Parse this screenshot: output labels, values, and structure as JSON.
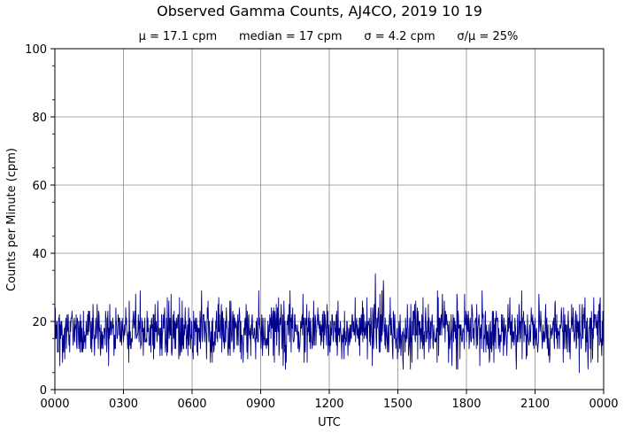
{
  "chart_data": {
    "type": "line",
    "title": "Observed Gamma Counts, AJ4CO, 2019 10 19",
    "subtitle": "μ = 17.1 cpm      median = 17 cpm      σ = 4.2 cpm      σ/μ = 25%",
    "xlabel": "UTC",
    "ylabel": "Counts per Minute (cpm)",
    "x_tick_labels": [
      "0000",
      "0300",
      "0600",
      "0900",
      "1200",
      "1500",
      "1800",
      "2100",
      "0000"
    ],
    "y_tick_labels": [
      "0",
      "20",
      "40",
      "60",
      "80",
      "100"
    ],
    "ylim": [
      0,
      100
    ],
    "xlim_minutes": [
      0,
      1440
    ],
    "grid": true,
    "series_color": "#00008b",
    "sample_interval_minutes": 1,
    "stats": {
      "mean": 17.1,
      "median": 17,
      "std": 4.2
    },
    "notable_points": [
      {
        "minute": 841,
        "value": 34
      },
      {
        "minute": 862,
        "value": 32
      },
      {
        "minute": 1376,
        "value": 5
      }
    ]
  }
}
